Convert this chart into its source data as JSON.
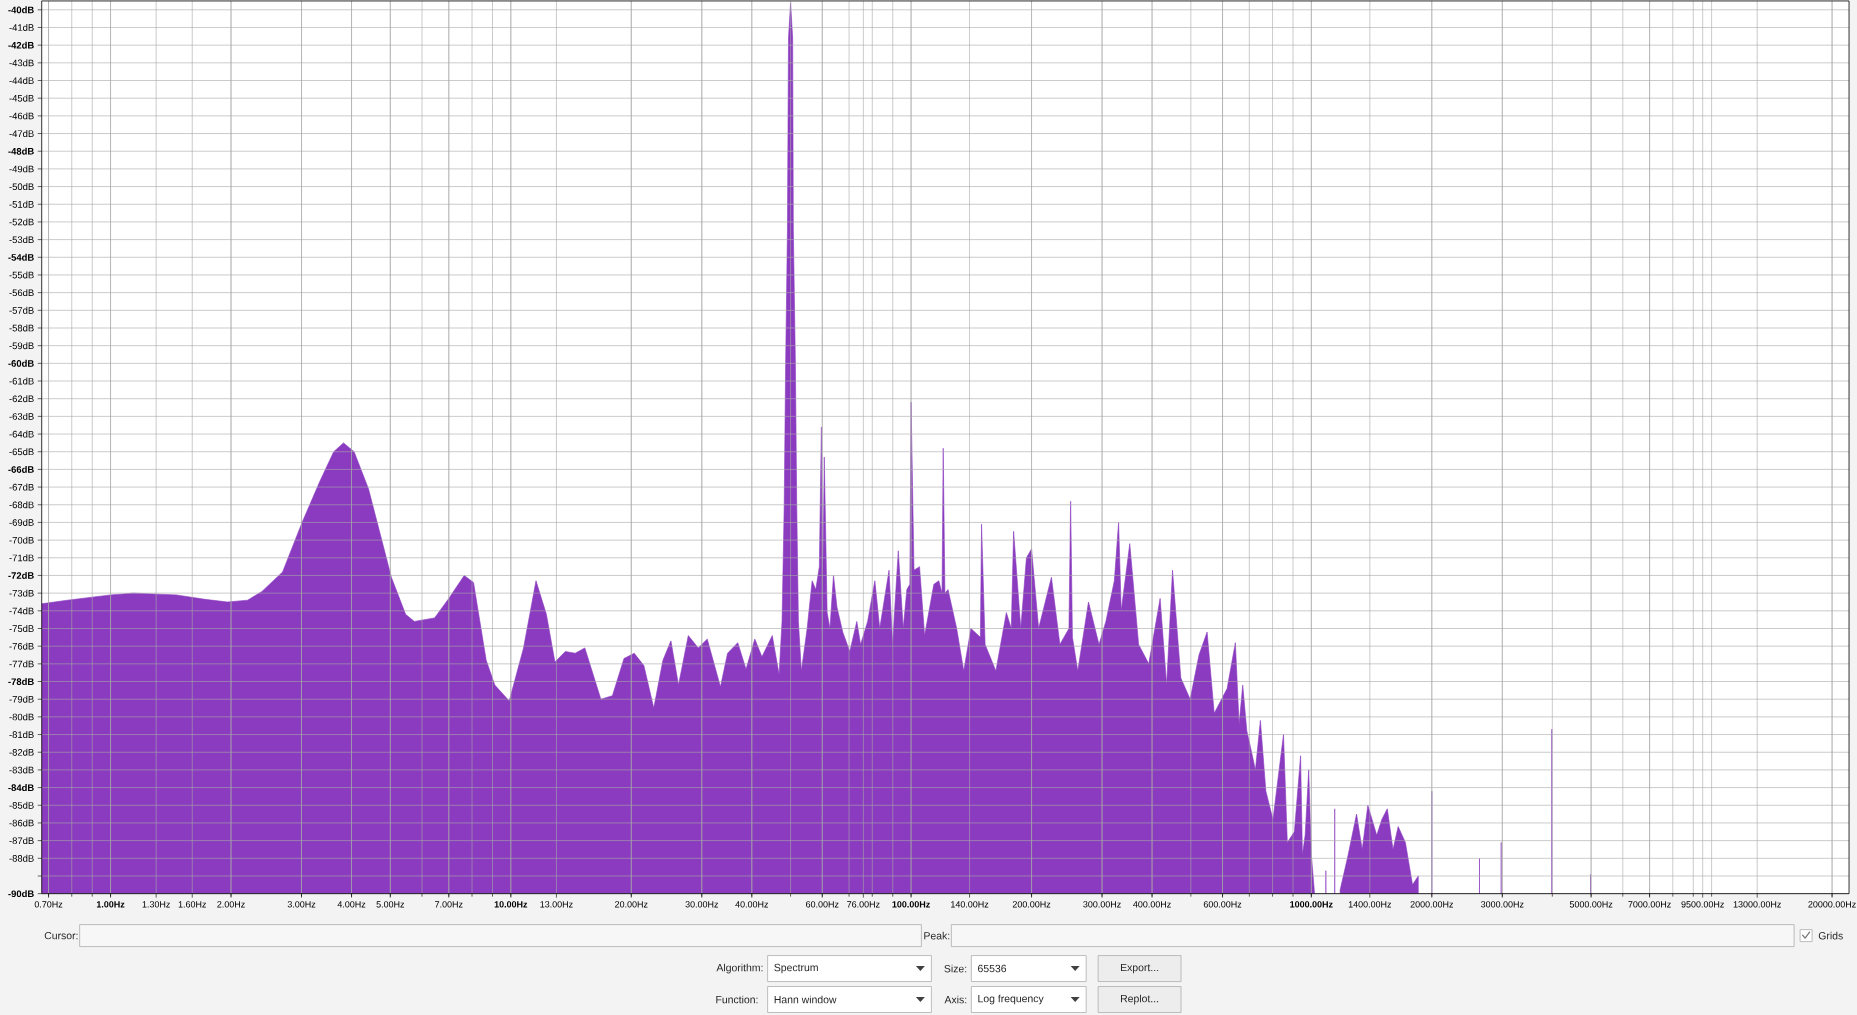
{
  "chart_data": {
    "type": "area",
    "color": "#8a3bbf",
    "log": "x",
    "grid": true,
    "xlim": [
      0.673,
      22050
    ],
    "ylim": [
      -90,
      -39.5
    ],
    "xticks": [
      {
        "value": 0.7,
        "label": "0.70Hz"
      },
      {
        "value": 1,
        "label": "**1.00Hz**"
      },
      {
        "value": 1.3,
        "label": "1.30Hz"
      },
      {
        "value": 1.6,
        "label": "1.60Hz"
      },
      {
        "value": 2,
        "label": "2.00Hz"
      },
      {
        "value": 3,
        "label": "3.00Hz"
      },
      {
        "value": 4,
        "label": "4.00Hz"
      },
      {
        "value": 5,
        "label": "5.00Hz"
      },
      {
        "value": 7,
        "label": "7.00Hz"
      },
      {
        "value": 10,
        "label": "**10.00Hz**"
      },
      {
        "value": 13,
        "label": "13.00Hz"
      },
      {
        "value": 20,
        "label": "20.00Hz"
      },
      {
        "value": 30,
        "label": "30.00Hz"
      },
      {
        "value": 40,
        "label": "40.00Hz"
      },
      {
        "value": 60,
        "label": "60.00Hz"
      },
      {
        "value": 76,
        "label": "76.00Hz"
      },
      {
        "value": 100,
        "label": "**100.00Hz**"
      },
      {
        "value": 140,
        "label": "140.00Hz"
      },
      {
        "value": 200,
        "label": "200.00Hz"
      },
      {
        "value": 300,
        "label": "300.00Hz"
      },
      {
        "value": 400,
        "label": "400.00Hz"
      },
      {
        "value": 600,
        "label": "600.00Hz"
      },
      {
        "value": 1000,
        "label": "**1000.00Hz**"
      },
      {
        "value": 1400,
        "label": "1400.00Hz"
      },
      {
        "value": 2000,
        "label": "2000.00Hz"
      },
      {
        "value": 3000,
        "label": "3000.00Hz"
      },
      {
        "value": 5000,
        "label": "5000.00Hz"
      },
      {
        "value": 7000,
        "label": "7000.00Hz"
      },
      {
        "value": 9500,
        "label": "9500.00Hz"
      },
      {
        "value": 13000,
        "label": "13000.00Hz"
      },
      {
        "value": 20000,
        "label": "20000.00Hz"
      }
    ],
    "yticks": [
      {
        "value": -40,
        "label": "**-40dB**"
      },
      {
        "value": -41,
        "label": "-41dB"
      },
      {
        "value": -42,
        "label": "**-42dB**"
      },
      {
        "value": -43,
        "label": "-43dB"
      },
      {
        "value": -44,
        "label": "-44dB"
      },
      {
        "value": -45,
        "label": "-45dB"
      },
      {
        "value": -46,
        "label": "-46dB"
      },
      {
        "value": -47,
        "label": "-47dB"
      },
      {
        "value": -48,
        "label": "**-48dB**"
      },
      {
        "value": -49,
        "label": "-49dB"
      },
      {
        "value": -50,
        "label": "-50dB"
      },
      {
        "value": -51,
        "label": "-51dB"
      },
      {
        "value": -52,
        "label": "-52dB"
      },
      {
        "value": -53,
        "label": "-53dB"
      },
      {
        "value": -54,
        "label": "**-54dB**"
      },
      {
        "value": -55,
        "label": "-55dB"
      },
      {
        "value": -56,
        "label": "-56dB"
      },
      {
        "value": -57,
        "label": "-57dB"
      },
      {
        "value": -58,
        "label": "-58dB"
      },
      {
        "value": -59,
        "label": "-59dB"
      },
      {
        "value": -60,
        "label": "**-60dB**"
      },
      {
        "value": -61,
        "label": "-61dB"
      },
      {
        "value": -62,
        "label": "-62dB"
      },
      {
        "value": -63,
        "label": "-63dB"
      },
      {
        "value": -64,
        "label": "-64dB"
      },
      {
        "value": -65,
        "label": "-65dB"
      },
      {
        "value": -66,
        "label": "**-66dB**"
      },
      {
        "value": -67,
        "label": "-67dB"
      },
      {
        "value": -68,
        "label": "-68dB"
      },
      {
        "value": -69,
        "label": "-69dB"
      },
      {
        "value": -70,
        "label": "-70dB"
      },
      {
        "value": -71,
        "label": "-71dB"
      },
      {
        "value": -72,
        "label": "**-72dB**"
      },
      {
        "value": -73,
        "label": "-73dB"
      },
      {
        "value": -74,
        "label": "-74dB"
      },
      {
        "value": -75,
        "label": "-75dB"
      },
      {
        "value": -76,
        "label": "-76dB"
      },
      {
        "value": -77,
        "label": "-77dB"
      },
      {
        "value": -78,
        "label": "**-78dB**"
      },
      {
        "value": -79,
        "label": "-79dB"
      },
      {
        "value": -80,
        "label": "-80dB"
      },
      {
        "value": -81,
        "label": "-81dB"
      },
      {
        "value": -82,
        "label": "-82dB"
      },
      {
        "value": -83,
        "label": "-83dB"
      },
      {
        "value": -84,
        "label": "**-84dB**"
      },
      {
        "value": -85,
        "label": "-85dB"
      },
      {
        "value": -86,
        "label": "-86dB"
      },
      {
        "value": -87,
        "label": "-87dB"
      },
      {
        "value": -88,
        "label": "-88dB"
      },
      {
        "value": -89,
        "label": null
      },
      {
        "value": -90,
        "label": "**-90dB**"
      }
    ],
    "x": [
      0.673,
      0.78,
      1.0,
      1.14,
      1.46,
      1.72,
      1.96,
      2.2,
      2.39,
      2.69,
      3.01,
      3.33,
      3.61,
      3.82,
      4.06,
      4.41,
      4.71,
      5.03,
      5.46,
      5.74,
      6.45,
      7.0,
      7.65,
      8.07,
      8.68,
      9.12,
      9.91,
      10.76,
      11.56,
      12.27,
      12.89,
      13.68,
      14.48,
      15.31,
      16.79,
      17.94,
      19.18,
      20.34,
      21.5,
      22.76,
      23.99,
      25.12,
      26.24,
      27.76,
      29.4,
      30.96,
      33.4,
      34.8,
      36.9,
      38.7,
      40.7,
      42.4,
      45.0,
      46.8,
      47.6,
      48.2,
      48.6,
      49.1,
      49.4,
      50.0,
      50.6,
      50.8,
      51.4,
      51.8,
      52.3,
      53.2,
      55.0,
      56.6,
      57.8,
      59.0,
      59.7,
      60.2,
      60.7,
      61.7,
      62.7,
      64.0,
      65.3,
      67.5,
      70.3,
      73.2,
      74.8,
      77.9,
      81.2,
      83.5,
      88.1,
      89.9,
      92.9,
      95.6,
      97.6,
      99.3,
      100,
      101.7,
      105.0,
      108.1,
      114.0,
      117.3,
      119.5,
      120.3,
      121.5,
      123.7,
      130,
      135.4,
      141.1,
      149,
      150,
      153.1,
      162.9,
      173.0,
      178,
      180.4,
      188.0,
      194.2,
      200.0,
      208.3,
      224.2,
      235.4,
      248,
      250.4,
      253,
      260.9,
      277.5,
      294.8,
      306.7,
      322.0,
      330,
      335,
      351.9,
      370.3,
      392.5,
      419,
      435,
      450,
      472,
      498,
      524,
      549,
      572,
      616,
      646,
      660,
      674,
      690,
      703,
      725,
      746,
      770,
      802,
      852,
      871,
      907,
      940,
      950,
      965,
      985,
      1000,
      1018,
      1030,
      1087,
      1110,
      1144,
      1160,
      1180,
      1236,
      1297,
      1340,
      1384,
      1457,
      1500,
      1548,
      1600,
      1648,
      1718,
      1790,
      1850,
      1880,
      2000,
      2030,
      2631,
      2700,
      2981,
      3050,
      3988,
      4100,
      4984
    ],
    "values": [
      -73.6,
      -73.4,
      -73.1,
      -73.0,
      -73.1,
      -73.35,
      -73.5,
      -73.4,
      -72.9,
      -71.8,
      -69.0,
      -66.7,
      -65.0,
      -64.5,
      -65.0,
      -67.1,
      -69.6,
      -72.1,
      -74.2,
      -74.6,
      -74.4,
      -73.3,
      -72.0,
      -72.4,
      -76.8,
      -78.2,
      -79.1,
      -76.1,
      -72.3,
      -74.2,
      -76.9,
      -76.3,
      -76.4,
      -76.1,
      -79.0,
      -78.8,
      -76.7,
      -76.4,
      -77.1,
      -79.5,
      -76.8,
      -75.7,
      -78.2,
      -75.4,
      -76.1,
      -75.6,
      -78.3,
      -76.4,
      -75.8,
      -77.3,
      -75.6,
      -76.6,
      -75.4,
      -77.6,
      -74.6,
      -68,
      -60,
      -52.5,
      -41.6,
      -39.6,
      -41.6,
      -52.5,
      -60,
      -68,
      -74.6,
      -77.4,
      -75.0,
      -72.3,
      -72.8,
      -71.5,
      -63.6,
      -72.0,
      -65.3,
      -74.1,
      -75.0,
      -72.0,
      -73.8,
      -75.2,
      -76.3,
      -74.6,
      -75.9,
      -74.6,
      -72.3,
      -75.0,
      -71.7,
      -75.9,
      -70.6,
      -75.0,
      -72.8,
      -72.5,
      -62.2,
      -71.7,
      -71.5,
      -75.4,
      -72.5,
      -72.3,
      -73.0,
      -64.8,
      -73.0,
      -72.8,
      -75.0,
      -77.4,
      -75.0,
      -75.5,
      -69.1,
      -75.9,
      -77.4,
      -74.1,
      -75.0,
      -69.5,
      -75.0,
      -71.0,
      -70.5,
      -75.0,
      -72.1,
      -75.9,
      -75.0,
      -67.8,
      -75.5,
      -77.4,
      -73.5,
      -75.9,
      -74.6,
      -72.3,
      -69.0,
      -74.0,
      -70.2,
      -75.9,
      -77.0,
      -73.3,
      -78.2,
      -71.7,
      -77.8,
      -79.0,
      -76.5,
      -75.2,
      -79.8,
      -78.4,
      -75.8,
      -80.4,
      -78.2,
      -80.8,
      -81.6,
      -83.0,
      -80.2,
      -84.2,
      -85.8,
      -81.0,
      -87.1,
      -86.5,
      -82.2,
      -87.8,
      -86.7,
      -83.0,
      -87.8,
      -89.9,
      null,
      -88.7,
      null,
      -85.2,
      null,
      -89.8,
      -87.8,
      -85.5,
      -87.5,
      -85.0,
      -86.7,
      -85.8,
      -85.2,
      -87.5,
      -86.2,
      -87.1,
      -89.5,
      -89.0,
      null,
      -84.2,
      null,
      -88.0,
      null,
      -87.1,
      null,
      -80.7,
      null,
      -88.9
    ],
    "annotations": [
      "Cursor:",
      "Peak:",
      "Grids",
      "Algorithm:",
      "Spectrum",
      "Size:",
      "65536",
      "Export...",
      "Function:",
      "Hann window",
      "Axis:",
      "Log frequency",
      "Replot..."
    ]
  }
}
